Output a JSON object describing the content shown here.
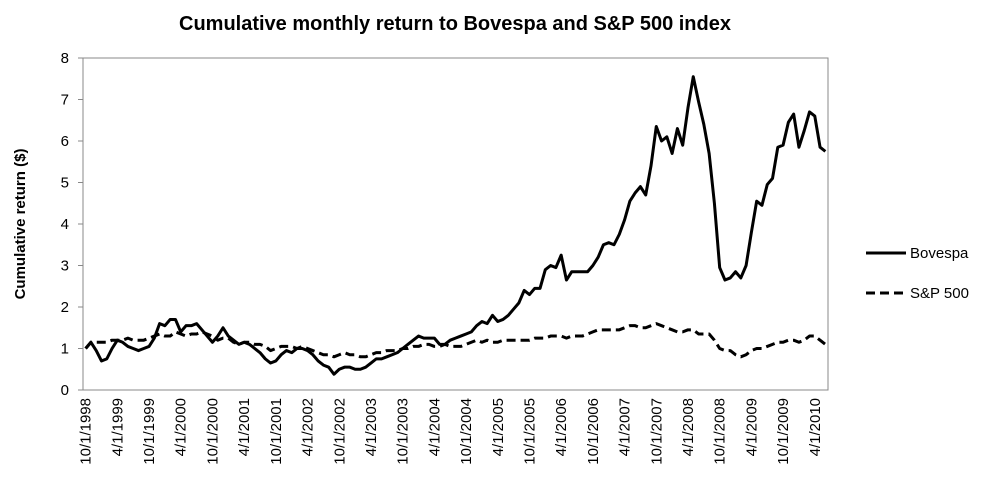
{
  "chart_data": {
    "type": "line",
    "title": "Cumulative monthly return to Bovespa and S&P 500 index",
    "y_label": "Cumulative return ($)",
    "categories": [
      "10/1/1998",
      null,
      null,
      null,
      null,
      null,
      "4/1/1999",
      null,
      null,
      null,
      null,
      null,
      "10/1/1999",
      null,
      null,
      null,
      null,
      null,
      "4/1/2000",
      null,
      null,
      null,
      null,
      null,
      "10/1/2000",
      null,
      null,
      null,
      null,
      null,
      "4/1/2001",
      null,
      null,
      null,
      null,
      null,
      "10/1/2001",
      null,
      null,
      null,
      null,
      null,
      "4/1/2002",
      null,
      null,
      null,
      null,
      null,
      "10/1/2002",
      null,
      null,
      null,
      null,
      null,
      "4/1/2003",
      null,
      null,
      null,
      null,
      null,
      "10/1/2003",
      null,
      null,
      null,
      null,
      null,
      "4/1/2004",
      null,
      null,
      null,
      null,
      null,
      "10/1/2004",
      null,
      null,
      null,
      null,
      null,
      "4/1/2005",
      null,
      null,
      null,
      null,
      null,
      "10/1/2005",
      null,
      null,
      null,
      null,
      null,
      "4/1/2006",
      null,
      null,
      null,
      null,
      null,
      "10/1/2006",
      null,
      null,
      null,
      null,
      null,
      "4/1/2007",
      null,
      null,
      null,
      null,
      null,
      "10/1/2007",
      null,
      null,
      null,
      null,
      null,
      "4/1/2008",
      null,
      null,
      null,
      null,
      null,
      "10/1/2008",
      null,
      null,
      null,
      null,
      null,
      "4/1/2009",
      null,
      null,
      null,
      null,
      null,
      "10/1/2009",
      null,
      null,
      null,
      null,
      null,
      "4/1/2010",
      null,
      null
    ],
    "series": [
      {
        "name": "Bovespa",
        "color": "#000000",
        "dash": "solid",
        "values": [
          1.0,
          1.15,
          0.95,
          0.7,
          0.75,
          1.0,
          1.2,
          1.15,
          1.05,
          1.0,
          0.95,
          1.0,
          1.05,
          1.25,
          1.6,
          1.55,
          1.7,
          1.7,
          1.4,
          1.55,
          1.55,
          1.6,
          1.45,
          1.3,
          1.15,
          1.3,
          1.5,
          1.3,
          1.2,
          1.1,
          1.15,
          1.1,
          1.0,
          0.9,
          0.75,
          0.65,
          0.7,
          0.85,
          0.95,
          0.9,
          1.0,
          1.0,
          0.95,
          0.85,
          0.7,
          0.6,
          0.55,
          0.38,
          0.5,
          0.55,
          0.55,
          0.5,
          0.5,
          0.55,
          0.65,
          0.75,
          0.75,
          0.8,
          0.85,
          0.9,
          1.0,
          1.1,
          1.2,
          1.3,
          1.25,
          1.25,
          1.25,
          1.1,
          1.1,
          1.2,
          1.25,
          1.3,
          1.35,
          1.4,
          1.55,
          1.65,
          1.6,
          1.8,
          1.65,
          1.7,
          1.8,
          1.95,
          2.1,
          2.4,
          2.3,
          2.45,
          2.45,
          2.9,
          3.0,
          2.95,
          3.25,
          2.65,
          2.85,
          2.85,
          2.85,
          2.85,
          3.0,
          3.2,
          3.5,
          3.55,
          3.5,
          3.75,
          4.1,
          4.55,
          4.75,
          4.9,
          4.7,
          5.4,
          6.35,
          6.0,
          6.1,
          5.7,
          6.3,
          5.9,
          6.8,
          7.55,
          6.95,
          6.4,
          5.7,
          4.5,
          2.95,
          2.65,
          2.7,
          2.85,
          2.7,
          3.0,
          3.8,
          4.55,
          4.45,
          4.95,
          5.1,
          5.85,
          5.9,
          6.45,
          6.65,
          5.85,
          6.25,
          6.7,
          6.6,
          5.85,
          5.75
        ]
      },
      {
        "name": "S&P 500",
        "color": "#000000",
        "dash": "dashed",
        "values": [
          1.0,
          1.15,
          1.15,
          1.15,
          1.15,
          1.2,
          1.2,
          1.2,
          1.25,
          1.2,
          1.2,
          1.2,
          1.25,
          1.3,
          1.35,
          1.3,
          1.3,
          1.4,
          1.35,
          1.3,
          1.35,
          1.35,
          1.4,
          1.35,
          1.3,
          1.2,
          1.25,
          1.25,
          1.15,
          1.1,
          1.15,
          1.15,
          1.1,
          1.1,
          1.05,
          0.95,
          1.0,
          1.05,
          1.05,
          1.05,
          1.0,
          1.05,
          1.0,
          0.95,
          0.9,
          0.85,
          0.85,
          0.8,
          0.85,
          0.9,
          0.85,
          0.85,
          0.8,
          0.8,
          0.85,
          0.9,
          0.9,
          0.95,
          0.95,
          0.95,
          1.0,
          1.0,
          1.05,
          1.05,
          1.1,
          1.1,
          1.05,
          1.05,
          1.1,
          1.05,
          1.05,
          1.05,
          1.1,
          1.15,
          1.2,
          1.15,
          1.2,
          1.15,
          1.15,
          1.2,
          1.2,
          1.2,
          1.2,
          1.2,
          1.2,
          1.25,
          1.25,
          1.25,
          1.3,
          1.3,
          1.3,
          1.25,
          1.3,
          1.3,
          1.3,
          1.35,
          1.4,
          1.45,
          1.45,
          1.45,
          1.45,
          1.45,
          1.5,
          1.55,
          1.55,
          1.5,
          1.5,
          1.55,
          1.6,
          1.55,
          1.5,
          1.45,
          1.4,
          1.4,
          1.45,
          1.45,
          1.35,
          1.35,
          1.35,
          1.2,
          1.0,
          0.95,
          0.95,
          0.85,
          0.8,
          0.85,
          0.95,
          1.0,
          1.0,
          1.05,
          1.1,
          1.15,
          1.15,
          1.2,
          1.2,
          1.15,
          1.2,
          1.3,
          1.3,
          1.2,
          1.1
        ]
      }
    ],
    "ylim": [
      0,
      8
    ],
    "yticks": [
      0,
      1,
      2,
      3,
      4,
      5,
      6,
      7,
      8
    ],
    "grid": false,
    "legend": "right"
  }
}
